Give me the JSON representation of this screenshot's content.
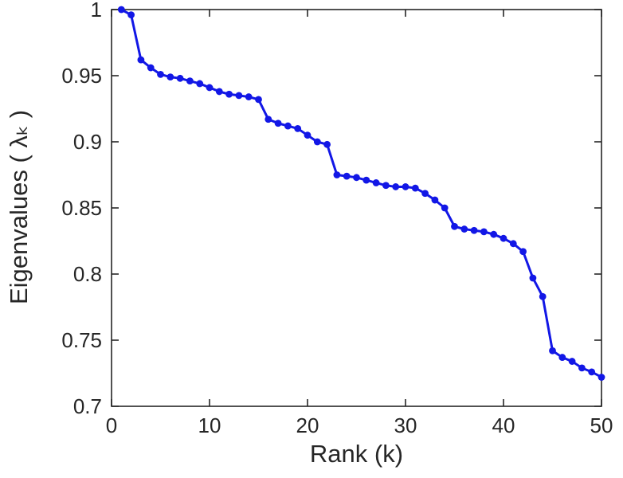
{
  "figure": {
    "background": "#ffffff"
  },
  "chart_data": {
    "type": "line",
    "title": "",
    "xlabel": "Rank (k)",
    "ylabel": "Eigenvalues ( λₖ )",
    "xlim": [
      0,
      50
    ],
    "ylim": [
      0.7,
      1.0
    ],
    "grid": false,
    "box": true,
    "line_color": "#1217e6",
    "axis_color": "#262626",
    "marker": "circle",
    "xticks": [
      {
        "v": 0,
        "label": "0"
      },
      {
        "v": 10,
        "label": "10"
      },
      {
        "v": 20,
        "label": "20"
      },
      {
        "v": 30,
        "label": "30"
      },
      {
        "v": 40,
        "label": "40"
      },
      {
        "v": 50,
        "label": "50"
      }
    ],
    "yticks": [
      {
        "v": 0.7,
        "label": "0.7"
      },
      {
        "v": 0.75,
        "label": "0.75"
      },
      {
        "v": 0.8,
        "label": "0.8"
      },
      {
        "v": 0.85,
        "label": "0.85"
      },
      {
        "v": 0.9,
        "label": "0.9"
      },
      {
        "v": 0.95,
        "label": "0.95"
      },
      {
        "v": 1.0,
        "label": "1"
      }
    ],
    "series": [
      {
        "name": "eigenvalues",
        "x": [
          1,
          2,
          3,
          4,
          5,
          6,
          7,
          8,
          9,
          10,
          11,
          12,
          13,
          14,
          15,
          16,
          17,
          18,
          19,
          20,
          21,
          22,
          23,
          24,
          25,
          26,
          27,
          28,
          29,
          30,
          31,
          32,
          33,
          34,
          35,
          36,
          37,
          38,
          39,
          40,
          41,
          42,
          43,
          44,
          45,
          46,
          47,
          48,
          49,
          50
        ],
        "y": [
          1.0,
          0.996,
          0.962,
          0.956,
          0.951,
          0.949,
          0.948,
          0.946,
          0.944,
          0.941,
          0.938,
          0.936,
          0.935,
          0.934,
          0.932,
          0.917,
          0.914,
          0.912,
          0.91,
          0.905,
          0.9,
          0.898,
          0.875,
          0.874,
          0.873,
          0.871,
          0.869,
          0.867,
          0.866,
          0.866,
          0.865,
          0.861,
          0.856,
          0.85,
          0.836,
          0.834,
          0.833,
          0.832,
          0.83,
          0.827,
          0.823,
          0.817,
          0.797,
          0.783,
          0.742,
          0.737,
          0.734,
          0.729,
          0.726,
          0.722
        ]
      }
    ]
  }
}
